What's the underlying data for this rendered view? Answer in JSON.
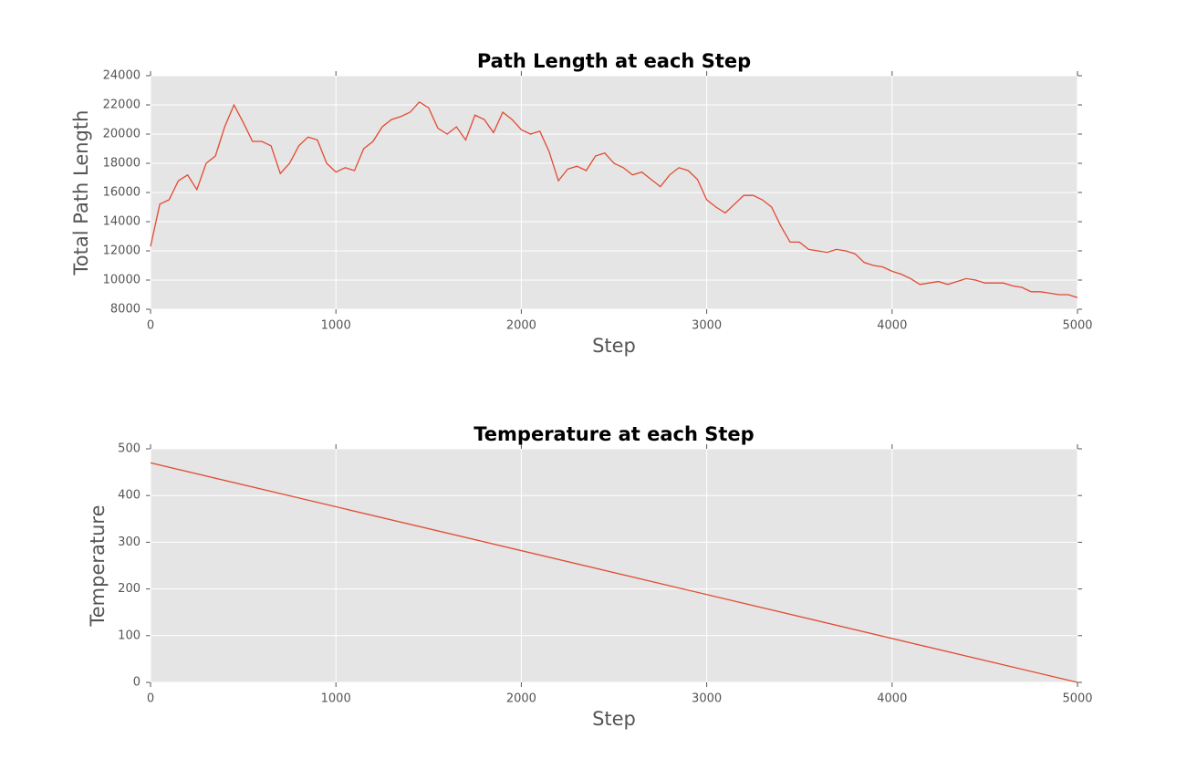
{
  "chart_data": [
    {
      "type": "line",
      "title": "Path Length at each Step",
      "xlabel": "Step",
      "ylabel": "Total Path Length",
      "x": [
        0,
        50,
        100,
        150,
        200,
        250,
        300,
        350,
        400,
        450,
        500,
        550,
        600,
        650,
        700,
        750,
        800,
        850,
        900,
        950,
        1000,
        1050,
        1100,
        1150,
        1200,
        1250,
        1300,
        1350,
        1400,
        1450,
        1500,
        1550,
        1600,
        1650,
        1700,
        1750,
        1800,
        1850,
        1900,
        1950,
        2000,
        2050,
        2100,
        2150,
        2200,
        2250,
        2300,
        2350,
        2400,
        2450,
        2500,
        2550,
        2600,
        2650,
        2700,
        2750,
        2800,
        2850,
        2900,
        2950,
        3000,
        3050,
        3100,
        3150,
        3200,
        3250,
        3300,
        3350,
        3400,
        3450,
        3500,
        3550,
        3600,
        3650,
        3700,
        3750,
        3800,
        3850,
        3900,
        3950,
        4000,
        4050,
        4100,
        4150,
        4200,
        4250,
        4300,
        4350,
        4400,
        4450,
        4500,
        4550,
        4600,
        4650,
        4700,
        4750,
        4800,
        4850,
        4900,
        4950,
        5000
      ],
      "values": [
        12300,
        15200,
        15500,
        16800,
        17200,
        16200,
        18000,
        18500,
        20500,
        22000,
        20800,
        19500,
        19500,
        19200,
        17300,
        18000,
        19200,
        19800,
        19600,
        18000,
        17400,
        17700,
        17500,
        19000,
        19500,
        20500,
        21000,
        21200,
        21500,
        22200,
        21800,
        20400,
        20000,
        20500,
        19600,
        21300,
        21000,
        20100,
        21500,
        21000,
        20300,
        20000,
        20200,
        18800,
        16800,
        17600,
        17800,
        17500,
        18500,
        18700,
        18000,
        17700,
        17200,
        17400,
        16900,
        16400,
        17200,
        17700,
        17500,
        16900,
        15500,
        15000,
        14600,
        15200,
        15800,
        15800,
        15500,
        15000,
        13700,
        12600,
        12600,
        12100,
        12000,
        11900,
        12100,
        12000,
        11800,
        11200,
        11000,
        10900,
        10600,
        10400,
        10100,
        9700,
        9800,
        9900,
        9700,
        9900,
        10100,
        10000,
        9800,
        9800,
        9800,
        9600,
        9500,
        9200,
        9200,
        9100,
        9000,
        9000,
        8800
      ],
      "color": "#e24a33",
      "xlim": [
        0,
        5000
      ],
      "xticks": [
        0,
        1000,
        2000,
        3000,
        4000,
        5000
      ],
      "ylim": [
        8000,
        24000
      ],
      "yticks": [
        8000,
        10000,
        12000,
        14000,
        16000,
        18000,
        20000,
        22000,
        24000
      ],
      "grid": true
    },
    {
      "type": "line",
      "title": "Temperature at each Step",
      "xlabel": "Step",
      "ylabel": "Temperature",
      "x": [
        0,
        5000
      ],
      "values": [
        470,
        0
      ],
      "color": "#e24a33",
      "xlim": [
        0,
        5000
      ],
      "xticks": [
        0,
        1000,
        2000,
        3000,
        4000,
        5000
      ],
      "ylim": [
        0,
        500
      ],
      "yticks": [
        0,
        100,
        200,
        300,
        400,
        500
      ],
      "grid": true
    }
  ]
}
